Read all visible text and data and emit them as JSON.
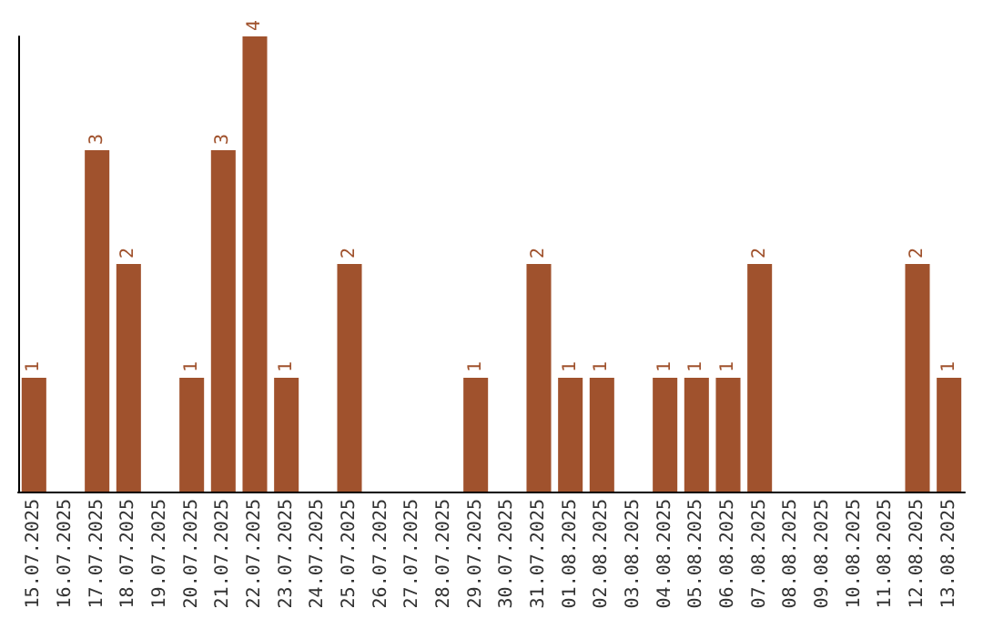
{
  "chart_data": {
    "type": "bar",
    "categories": [
      "15.07.2025",
      "16.07.2025",
      "17.07.2025",
      "18.07.2025",
      "19.07.2025",
      "20.07.2025",
      "21.07.2025",
      "22.07.2025",
      "23.07.2025",
      "24.07.2025",
      "25.07.2025",
      "26.07.2025",
      "27.07.2025",
      "28.07.2025",
      "29.07.2025",
      "30.07.2025",
      "31.07.2025",
      "01.08.2025",
      "02.08.2025",
      "03.08.2025",
      "04.08.2025",
      "05.08.2025",
      "06.08.2025",
      "07.08.2025",
      "08.08.2025",
      "09.08.2025",
      "10.08.2025",
      "11.08.2025",
      "12.08.2025",
      "13.08.2025"
    ],
    "values": [
      1,
      0,
      3,
      2,
      0,
      1,
      3,
      4,
      1,
      0,
      2,
      0,
      0,
      0,
      1,
      0,
      2,
      1,
      1,
      0,
      1,
      1,
      1,
      2,
      0,
      0,
      0,
      0,
      2,
      1
    ],
    "value_labels": [
      "1",
      null,
      "3",
      "2",
      null,
      "1",
      "3",
      "4",
      "1",
      null,
      "2",
      null,
      null,
      null,
      "1",
      null,
      "2",
      "1",
      "1",
      null,
      "1",
      "1",
      "1",
      "2",
      null,
      null,
      null,
      null,
      "2",
      "1"
    ],
    "color": "#a0522d",
    "grid": false,
    "tick_labels": "x"
  }
}
